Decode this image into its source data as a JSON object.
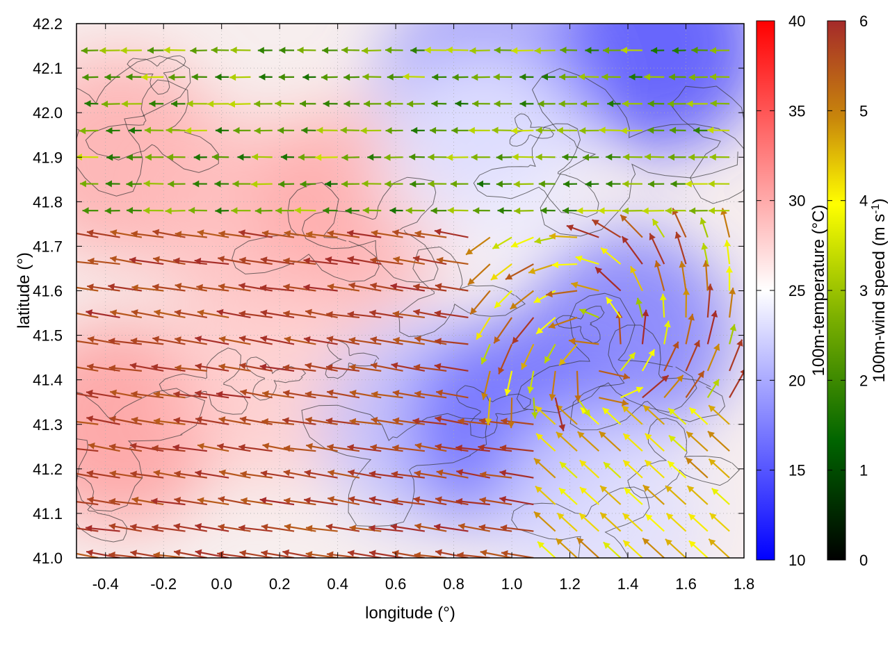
{
  "chart_data": {
    "type": "heatmap",
    "xlabel": "longitude (°)",
    "ylabel": "latitude (°)",
    "xlim": [
      -0.5,
      1.8
    ],
    "ylim": [
      41.0,
      42.2
    ],
    "x_ticks": [
      "-0.4",
      "-0.2",
      "0.0",
      "0.2",
      "0.4",
      "0.6",
      "0.8",
      "1.0",
      "1.2",
      "1.4",
      "1.6",
      "1.8"
    ],
    "y_ticks": [
      "41.0",
      "41.1",
      "41.2",
      "41.3",
      "41.4",
      "41.5",
      "41.6",
      "41.7",
      "41.8",
      "41.9",
      "42.0",
      "42.1",
      "42.2"
    ],
    "grid": true,
    "temperature_colorbar": {
      "label": "100m-temperature (°C)",
      "range": [
        10,
        40
      ],
      "ticks": [
        "10",
        "15",
        "20",
        "25",
        "30",
        "35",
        "40"
      ],
      "colors": [
        "#0000ff",
        "#ffffff",
        "#ff0000"
      ]
    },
    "wind_colorbar": {
      "label": "100m-wind speed (m s-1)",
      "range": [
        0,
        6
      ],
      "ticks": [
        "0",
        "1",
        "2",
        "3",
        "4",
        "5",
        "6"
      ],
      "colors": [
        "#000000",
        "#006400",
        "#7cb000",
        "#ffff00",
        "#c8860b",
        "#a52a2a"
      ]
    },
    "temperature_regions": [
      {
        "lon": -0.35,
        "lat": 41.9,
        "temp": 30
      },
      {
        "lon": -0.35,
        "lat": 41.3,
        "temp": 31
      },
      {
        "lon": 0.1,
        "lat": 41.75,
        "temp": 29
      },
      {
        "lon": 0.45,
        "lat": 41.78,
        "temp": 30
      },
      {
        "lon": 0.2,
        "lat": 41.4,
        "temp": 28
      },
      {
        "lon": 0.7,
        "lat": 41.3,
        "temp": 21
      },
      {
        "lon": 1.0,
        "lat": 41.3,
        "temp": 16
      },
      {
        "lon": 1.4,
        "lat": 41.5,
        "temp": 17
      },
      {
        "lon": 1.5,
        "lat": 42.15,
        "temp": 14
      },
      {
        "lon": 0.9,
        "lat": 42.05,
        "temp": 18
      },
      {
        "lon": 1.3,
        "lat": 41.1,
        "temp": 23
      },
      {
        "lon": 0.9,
        "lat": 41.9,
        "temp": 24
      }
    ],
    "wind_field_notes": "Strong (~6 m s-1) westward flow over the lower-left domain, weak (~1-3 m s-1) westward flow north of 41.8°, moderate (~4-5 m s-1) southwesterly flow in the lower-right corner."
  }
}
